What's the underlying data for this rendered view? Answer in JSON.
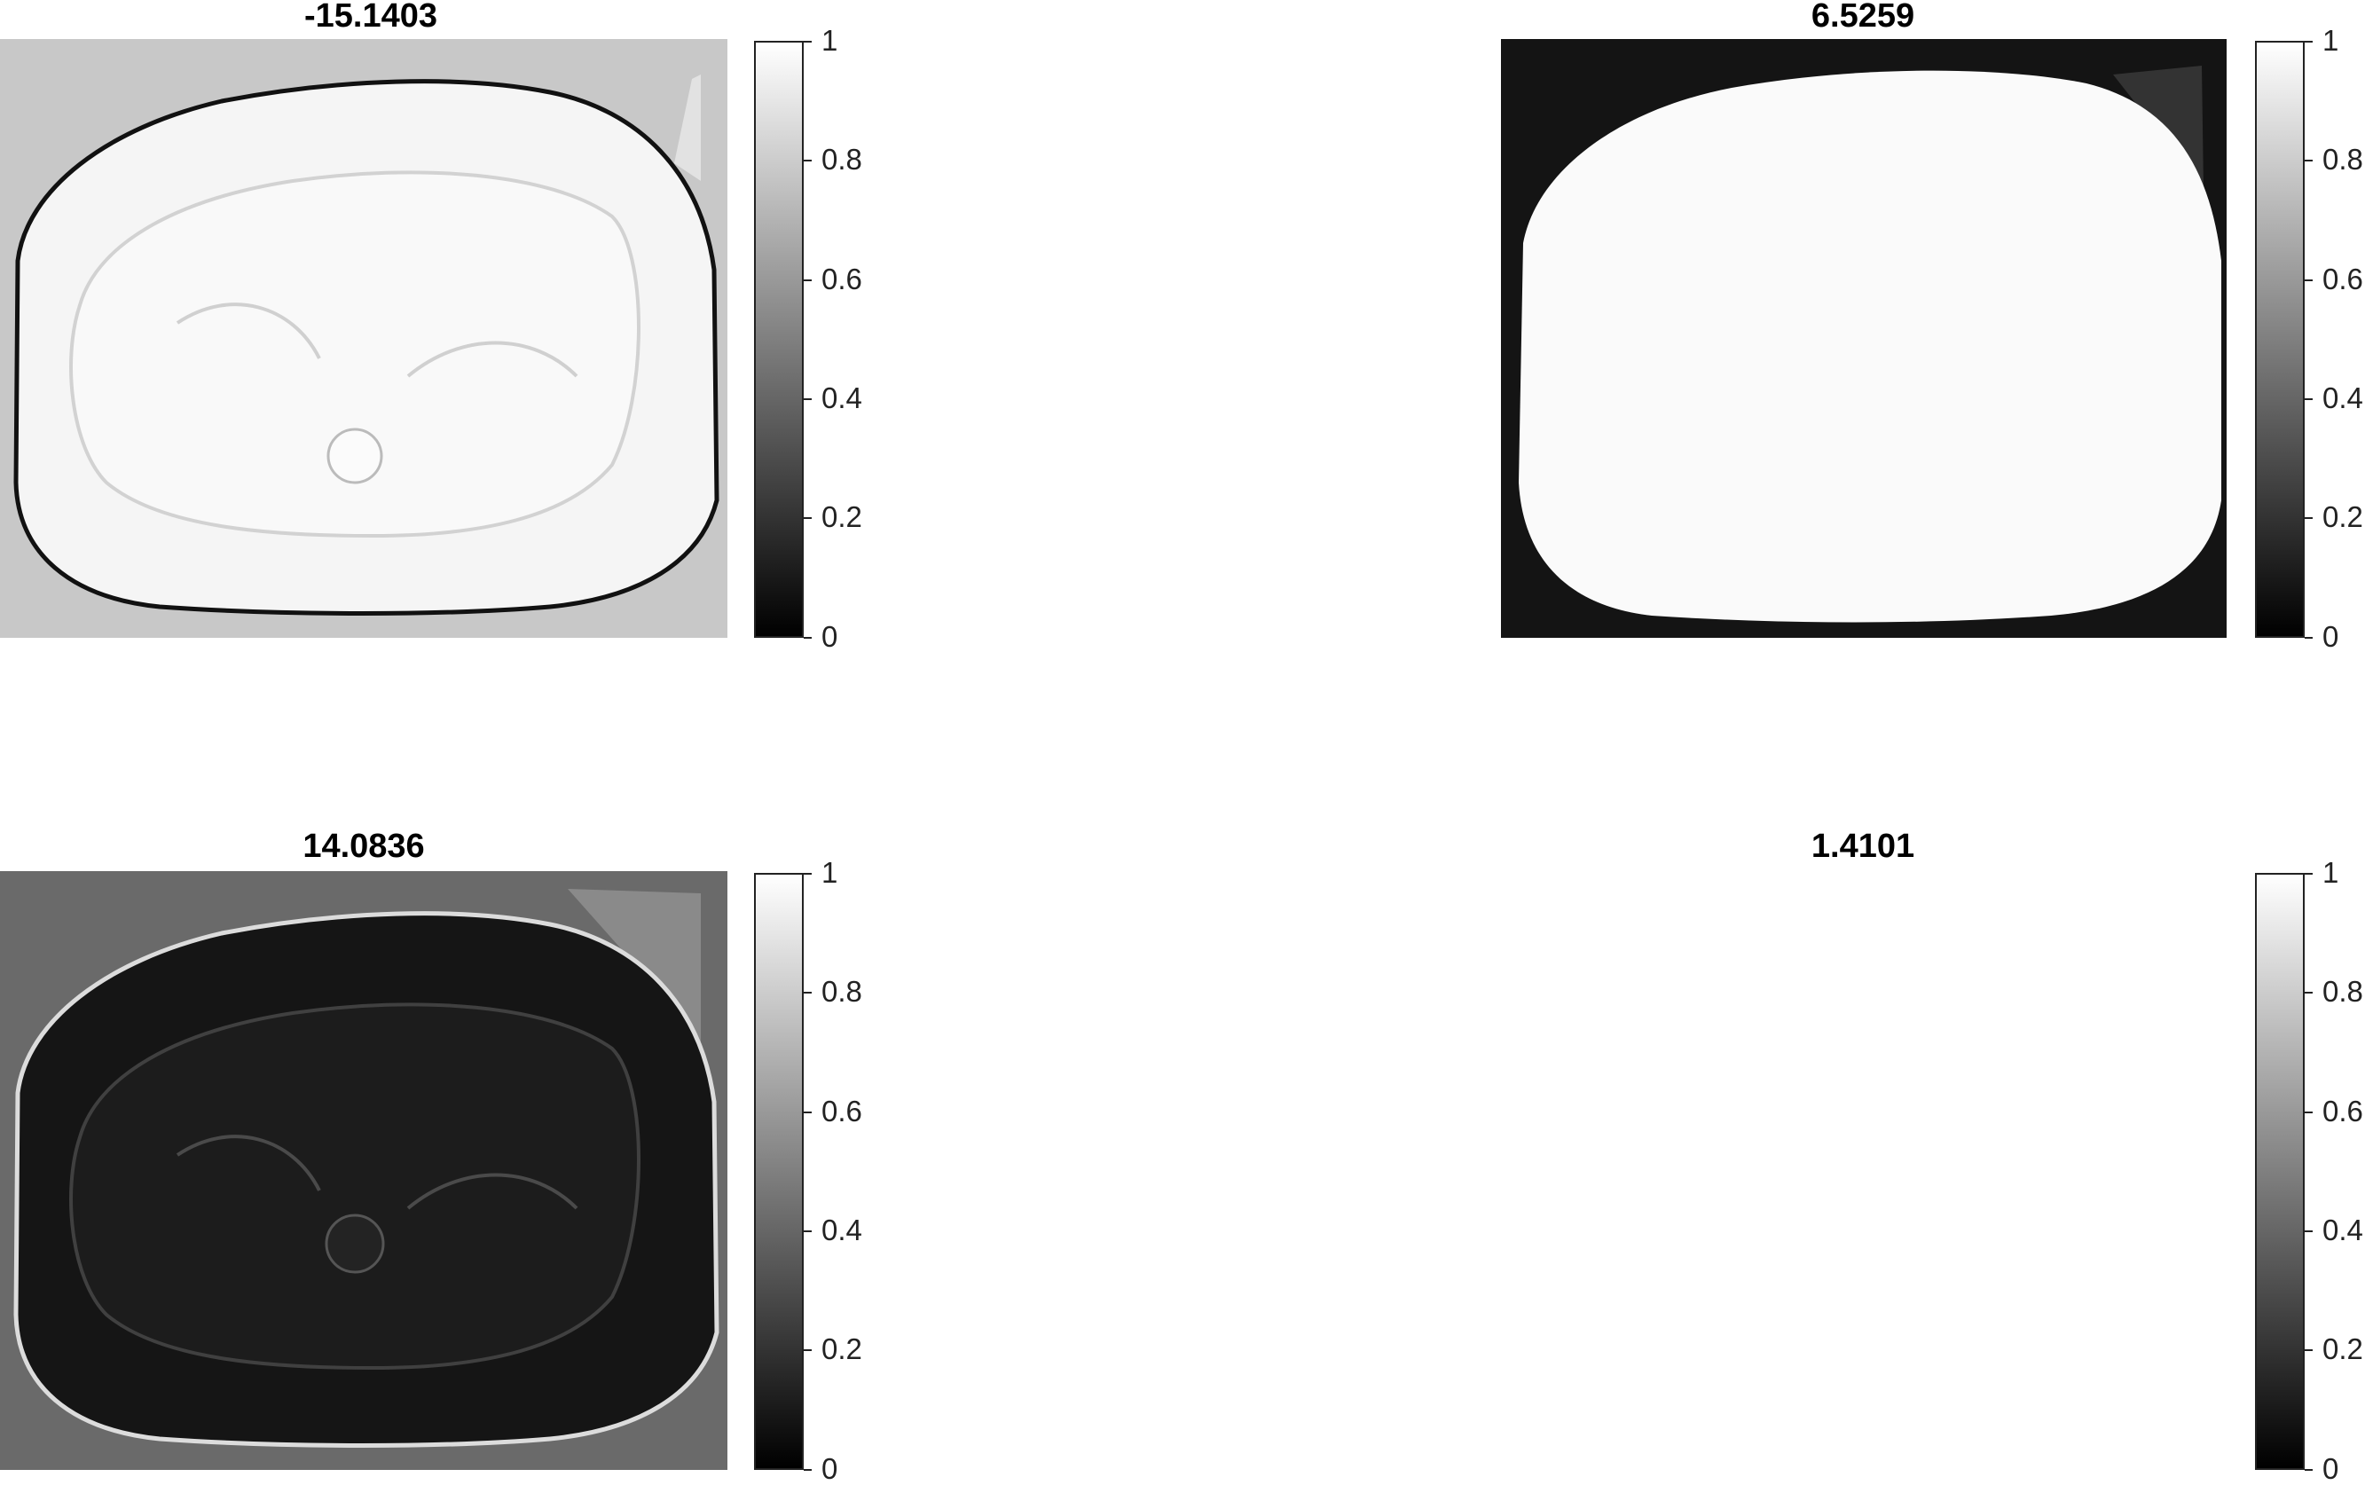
{
  "figure": {
    "panels": [
      {
        "title": "-15.1403",
        "style": "light-edge"
      },
      {
        "title": "6.5259",
        "style": "mask"
      },
      {
        "title": "14.0836",
        "style": "dark-edge"
      },
      {
        "title": "1.4101",
        "style": "blank"
      }
    ],
    "colorbar_ticks": [
      "0",
      "0.2",
      "0.4",
      "0.6",
      "0.8",
      "1"
    ],
    "colormap": {
      "low": "#000000",
      "high": "#ffffff"
    }
  }
}
